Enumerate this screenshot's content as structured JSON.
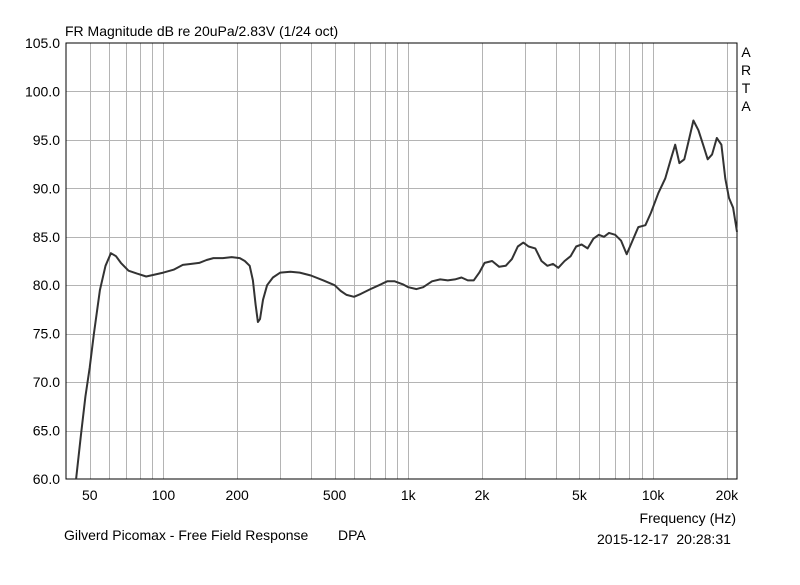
{
  "chart_data": {
    "type": "line",
    "title": "FR Magnitude dB re 20uPa/2.83V (1/24 oct)",
    "xlabel": "Frequency (Hz)",
    "ylabel": "",
    "x_scale": "log",
    "xlim": [
      40,
      22000
    ],
    "ylim": [
      60,
      105
    ],
    "grid": true,
    "x_tick_labels": [
      {
        "value": 50,
        "label": "50"
      },
      {
        "value": 100,
        "label": "100"
      },
      {
        "value": 200,
        "label": "200"
      },
      {
        "value": 500,
        "label": "500"
      },
      {
        "value": 1000,
        "label": "1k"
      },
      {
        "value": 2000,
        "label": "2k"
      },
      {
        "value": 5000,
        "label": "5k"
      },
      {
        "value": 10000,
        "label": "10k"
      },
      {
        "value": 20000,
        "label": "20k"
      }
    ],
    "y_tick_labels": [
      {
        "value": 105,
        "label": "105.0"
      },
      {
        "value": 100,
        "label": "100.0"
      },
      {
        "value": 95,
        "label": "95.0"
      },
      {
        "value": 90,
        "label": "90.0"
      },
      {
        "value": 85,
        "label": "85.0"
      },
      {
        "value": 80,
        "label": "80.0"
      },
      {
        "value": 75,
        "label": "75.0"
      },
      {
        "value": 70,
        "label": "70.0"
      },
      {
        "value": 65,
        "label": "65.0"
      },
      {
        "value": 60,
        "label": "60.0"
      }
    ],
    "series": [
      {
        "color": "#333333",
        "points": [
          [
            44,
            60.0
          ],
          [
            46,
            64.5
          ],
          [
            48,
            68.5
          ],
          [
            50,
            71.5
          ],
          [
            52,
            75.0
          ],
          [
            55,
            79.5
          ],
          [
            58,
            82.0
          ],
          [
            61,
            83.3
          ],
          [
            64,
            83.0
          ],
          [
            67,
            82.3
          ],
          [
            72,
            81.5
          ],
          [
            78,
            81.2
          ],
          [
            85,
            80.9
          ],
          [
            92,
            81.1
          ],
          [
            100,
            81.3
          ],
          [
            110,
            81.6
          ],
          [
            120,
            82.1
          ],
          [
            130,
            82.2
          ],
          [
            140,
            82.3
          ],
          [
            150,
            82.6
          ],
          [
            160,
            82.8
          ],
          [
            175,
            82.8
          ],
          [
            190,
            82.9
          ],
          [
            205,
            82.8
          ],
          [
            215,
            82.5
          ],
          [
            225,
            82.0
          ],
          [
            232,
            80.5
          ],
          [
            238,
            78.0
          ],
          [
            243,
            76.2
          ],
          [
            248,
            76.5
          ],
          [
            255,
            78.5
          ],
          [
            265,
            80.0
          ],
          [
            280,
            80.8
          ],
          [
            300,
            81.3
          ],
          [
            330,
            81.4
          ],
          [
            360,
            81.3
          ],
          [
            400,
            81.0
          ],
          [
            450,
            80.5
          ],
          [
            500,
            80.0
          ],
          [
            530,
            79.4
          ],
          [
            560,
            79.0
          ],
          [
            600,
            78.8
          ],
          [
            640,
            79.1
          ],
          [
            700,
            79.6
          ],
          [
            760,
            80.0
          ],
          [
            820,
            80.4
          ],
          [
            880,
            80.4
          ],
          [
            950,
            80.1
          ],
          [
            1000,
            79.8
          ],
          [
            1080,
            79.6
          ],
          [
            1150,
            79.8
          ],
          [
            1250,
            80.4
          ],
          [
            1350,
            80.6
          ],
          [
            1450,
            80.5
          ],
          [
            1550,
            80.6
          ],
          [
            1650,
            80.8
          ],
          [
            1750,
            80.5
          ],
          [
            1850,
            80.5
          ],
          [
            1950,
            81.3
          ],
          [
            2050,
            82.3
          ],
          [
            2200,
            82.5
          ],
          [
            2350,
            81.9
          ],
          [
            2500,
            82.0
          ],
          [
            2650,
            82.7
          ],
          [
            2800,
            84.0
          ],
          [
            2950,
            84.4
          ],
          [
            3100,
            84.0
          ],
          [
            3300,
            83.8
          ],
          [
            3500,
            82.5
          ],
          [
            3700,
            82.0
          ],
          [
            3900,
            82.2
          ],
          [
            4100,
            81.8
          ],
          [
            4350,
            82.5
          ],
          [
            4600,
            83.0
          ],
          [
            4850,
            84.0
          ],
          [
            5100,
            84.2
          ],
          [
            5400,
            83.8
          ],
          [
            5700,
            84.8
          ],
          [
            6000,
            85.2
          ],
          [
            6300,
            85.0
          ],
          [
            6600,
            85.4
          ],
          [
            7000,
            85.2
          ],
          [
            7400,
            84.6
          ],
          [
            7800,
            83.2
          ],
          [
            8200,
            84.5
          ],
          [
            8700,
            86.0
          ],
          [
            9300,
            86.2
          ],
          [
            9800,
            87.5
          ],
          [
            10500,
            89.5
          ],
          [
            11200,
            91.0
          ],
          [
            11800,
            93.0
          ],
          [
            12300,
            94.5
          ],
          [
            12800,
            92.6
          ],
          [
            13400,
            93.0
          ],
          [
            14000,
            95.0
          ],
          [
            14600,
            97.0
          ],
          [
            15300,
            96.0
          ],
          [
            16000,
            94.5
          ],
          [
            16700,
            93.0
          ],
          [
            17400,
            93.5
          ],
          [
            18200,
            95.2
          ],
          [
            19000,
            94.5
          ],
          [
            19700,
            91.0
          ],
          [
            20400,
            89.0
          ],
          [
            21200,
            88.0
          ],
          [
            22000,
            85.5
          ]
        ]
      }
    ]
  },
  "branding": {
    "letters": [
      "A",
      "R",
      "T",
      "A"
    ]
  },
  "footer": {
    "title": "Gilverd Picomax - Free Field Response",
    "note": "DPA",
    "timestamp": "2015-12-17  20:28:31"
  }
}
